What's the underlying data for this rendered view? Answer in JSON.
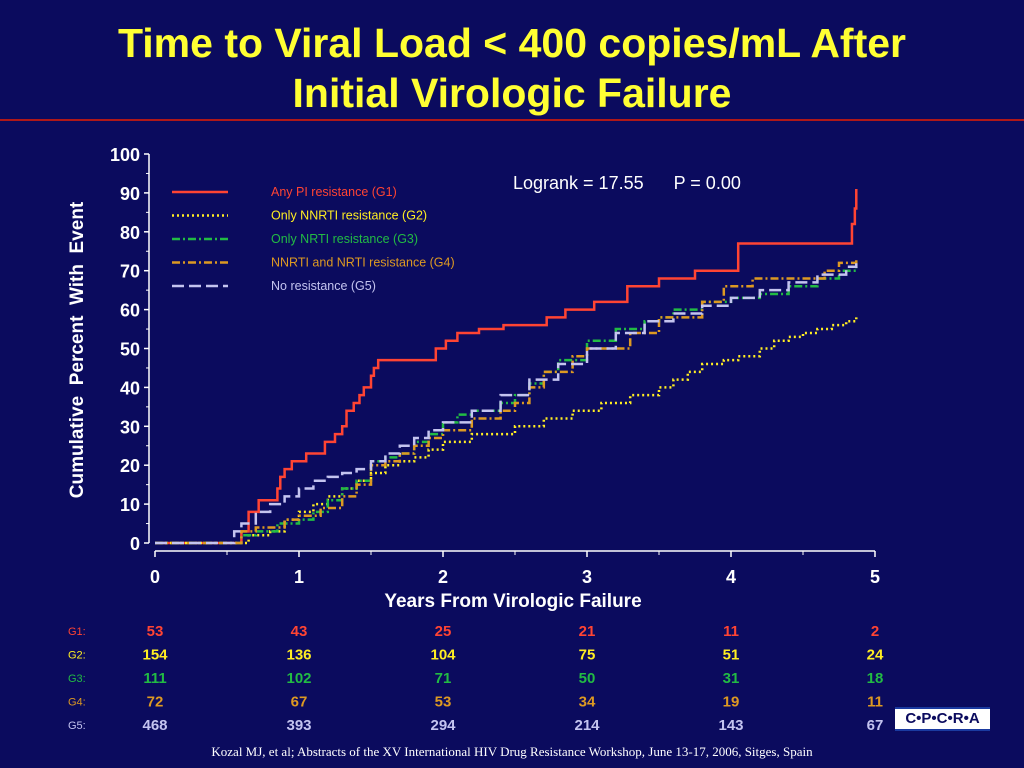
{
  "slide": {
    "title_line1": "Time to Viral Load < 400 copies/mL After",
    "title_line2": "Initial Virologic Failure",
    "logo": "C•P•C•R•A",
    "citation": "Kozal MJ, et al; Abstracts of the XV International HIV Drug Resistance Workshop, June 13-17, 2006, Sitges, Spain",
    "colors": {
      "background": "#0b0b5e",
      "title": "#ffff33",
      "rule": "#b01818"
    }
  },
  "chart_data": {
    "type": "line",
    "xlabel": "Years From Virologic Failure",
    "ylabel": "Cumulative  Percent  With  Event",
    "xlim": [
      0,
      5
    ],
    "ylim": [
      0,
      100
    ],
    "xticks": [
      "0",
      "1",
      "2",
      "3",
      "4",
      "5"
    ],
    "yticks": [
      "0",
      "10",
      "20",
      "30",
      "40",
      "50",
      "60",
      "70",
      "80",
      "90",
      "100"
    ],
    "annotation": "Logrank = 17.55      P = 0.00",
    "legend_position": "top-left",
    "series": [
      {
        "name": "Any  PI  resistance  (G1)",
        "color": "#ff4433",
        "dash": "solid",
        "x": [
          0,
          0.52,
          0.6,
          0.65,
          0.72,
          0.85,
          0.87,
          0.9,
          0.95,
          1.0,
          1.05,
          1.1,
          1.18,
          1.25,
          1.3,
          1.33,
          1.38,
          1.42,
          1.45,
          1.5,
          1.52,
          1.55,
          1.58,
          1.6,
          1.65,
          1.7,
          1.95,
          2.02,
          2.1,
          2.25,
          2.42,
          2.72,
          2.85,
          3.05,
          3.28,
          3.5,
          3.75,
          4.05,
          4.8,
          4.84,
          4.86,
          4.87
        ],
        "y": [
          0,
          0,
          3,
          8,
          11,
          14,
          17,
          19,
          21,
          21,
          23,
          23,
          26,
          28,
          30,
          34,
          36,
          38,
          40,
          43,
          45,
          47,
          47,
          47,
          47,
          47,
          50,
          52,
          54,
          55,
          56,
          58,
          60,
          62,
          66,
          68,
          70,
          77,
          77,
          82,
          86,
          91
        ]
      },
      {
        "name": "Only  NNRTI  resistance  (G2)",
        "color": "#ffee22",
        "dash": "dot",
        "x": [
          0,
          0.55,
          0.65,
          0.8,
          0.9,
          1.0,
          1.1,
          1.2,
          1.3,
          1.4,
          1.5,
          1.6,
          1.7,
          1.8,
          1.9,
          2.0,
          2.2,
          2.5,
          2.7,
          2.9,
          3.1,
          3.3,
          3.5,
          3.6,
          3.7,
          3.8,
          3.95,
          4.05,
          4.1,
          4.2,
          4.3,
          4.4,
          4.5,
          4.6,
          4.7,
          4.8,
          4.87
        ],
        "y": [
          0,
          0,
          2,
          3,
          6,
          8,
          10,
          12,
          14,
          16,
          18,
          20,
          21,
          22,
          24,
          26,
          28,
          30,
          32,
          34,
          36,
          38,
          40,
          42,
          44,
          46,
          47,
          48,
          48,
          50,
          52,
          53,
          54,
          55,
          56,
          57,
          58
        ]
      },
      {
        "name": "Only  NRTI  resistance  (G3)",
        "color": "#22bb44",
        "dash": "dashdot",
        "x": [
          0,
          0.55,
          0.6,
          0.7,
          0.85,
          1.0,
          1.1,
          1.2,
          1.3,
          1.4,
          1.5,
          1.6,
          1.7,
          1.8,
          1.9,
          2.0,
          2.1,
          2.2,
          2.4,
          2.5,
          2.6,
          2.7,
          2.8,
          3.0,
          3.2,
          3.4,
          3.5,
          3.6,
          3.8,
          4.0,
          4.2,
          4.4,
          4.6,
          4.75,
          4.87
        ],
        "y": [
          0,
          0,
          2,
          3,
          5,
          6,
          8,
          11,
          14,
          16,
          21,
          22,
          23,
          26,
          28,
          31,
          33,
          34,
          36,
          38,
          41,
          44,
          47,
          52,
          55,
          57,
          58,
          60,
          62,
          63,
          64,
          66,
          68,
          70,
          71
        ]
      },
      {
        "name": "NNRTI  and  NRTI  resistance  (G4)",
        "color": "#dd9922",
        "dash": "dashdot",
        "x": [
          0,
          0.55,
          0.6,
          0.7,
          0.9,
          1.0,
          1.15,
          1.3,
          1.4,
          1.5,
          1.6,
          1.7,
          1.8,
          1.9,
          2.0,
          2.2,
          2.4,
          2.5,
          2.6,
          2.7,
          2.9,
          3.0,
          3.3,
          3.5,
          3.8,
          3.95,
          4.1,
          4.15,
          4.4,
          4.65,
          4.75,
          4.87
        ],
        "y": [
          0,
          0,
          3,
          4,
          6,
          7,
          9,
          12,
          15,
          20,
          21,
          23,
          25,
          27,
          29,
          32,
          34,
          36,
          40,
          44,
          48,
          50,
          54,
          58,
          62,
          66,
          66,
          68,
          68,
          70,
          72,
          73
        ]
      },
      {
        "name": "No  resistance  (G5)",
        "color": "#c4c4f0",
        "dash": "longdash",
        "x": [
          0,
          0.5,
          0.55,
          0.6,
          0.7,
          0.8,
          0.9,
          1.0,
          1.1,
          1.2,
          1.3,
          1.4,
          1.5,
          1.6,
          1.7,
          1.8,
          1.9,
          2.0,
          2.2,
          2.4,
          2.6,
          2.8,
          3.0,
          3.2,
          3.4,
          3.6,
          3.8,
          4.0,
          4.2,
          4.4,
          4.6,
          4.8,
          4.87
        ],
        "y": [
          0,
          0,
          3,
          5,
          8,
          10,
          12,
          14,
          16,
          17,
          18,
          19,
          21,
          23,
          25,
          27,
          29,
          31,
          34,
          38,
          42,
          46,
          50,
          54,
          57,
          59,
          61,
          63,
          65,
          67,
          69,
          71,
          72
        ]
      }
    ],
    "risk_table": {
      "rows": [
        {
          "label": "G1:",
          "color": "#ff4433",
          "values": [
            "53",
            "43",
            "25",
            "21",
            "11",
            "2"
          ]
        },
        {
          "label": "G2:",
          "color": "#ffee22",
          "values": [
            "154",
            "136",
            "104",
            "75",
            "51",
            "24"
          ]
        },
        {
          "label": "G3:",
          "color": "#22bb44",
          "values": [
            "111",
            "102",
            "71",
            "50",
            "31",
            "18"
          ]
        },
        {
          "label": "G4:",
          "color": "#dd9922",
          "values": [
            "72",
            "67",
            "53",
            "34",
            "19",
            "11"
          ]
        },
        {
          "label": "G5:",
          "color": "#c4c4f0",
          "values": [
            "468",
            "393",
            "294",
            "214",
            "143",
            "67"
          ]
        }
      ]
    }
  }
}
